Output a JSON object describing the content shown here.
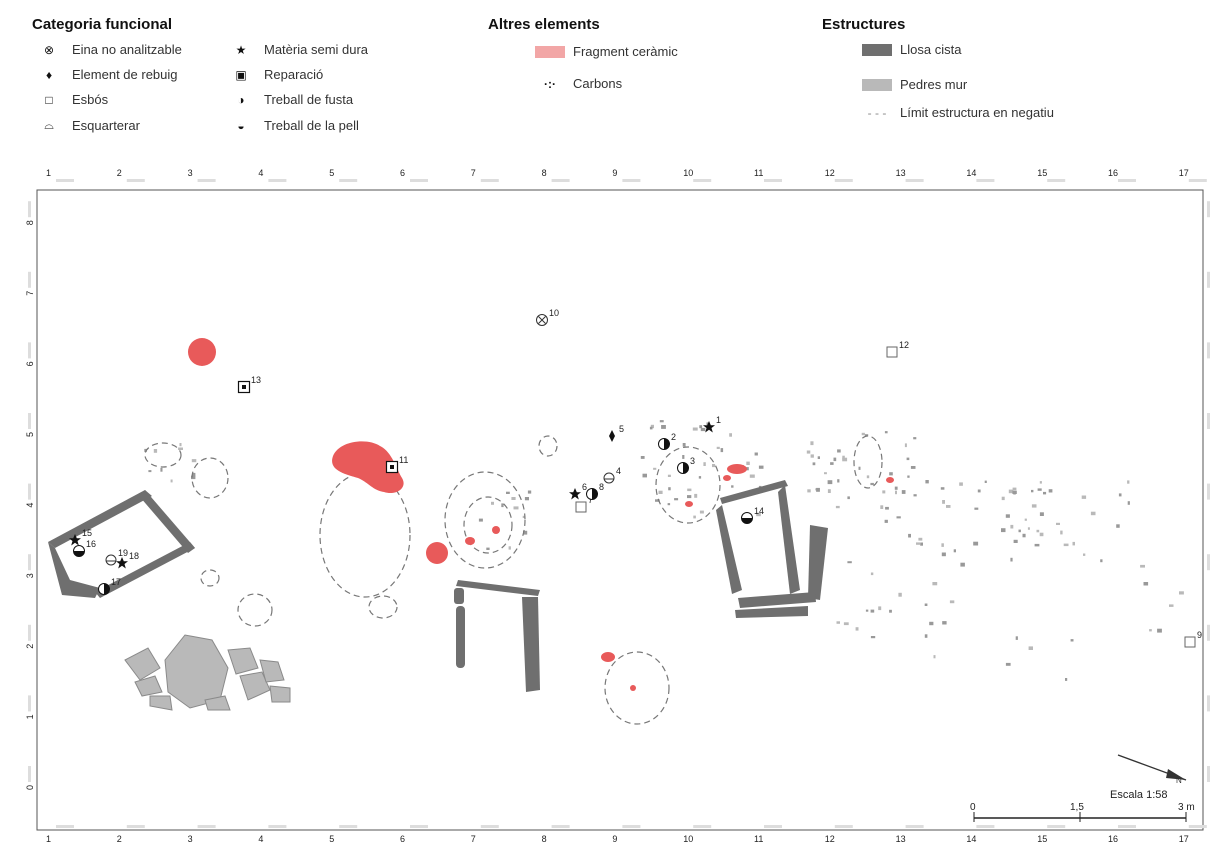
{
  "legend": {
    "functional": {
      "title": "Categoria funcional",
      "items": [
        {
          "label": "Eina no analitzable",
          "icon": "circle-x-icon",
          "glyph": "⊗"
        },
        {
          "label": "Element de rebuig",
          "icon": "diamond-icon",
          "glyph": "♦"
        },
        {
          "label": "Esbós",
          "icon": "square-outline-icon",
          "glyph": "□"
        },
        {
          "label": "Esquarterar",
          "icon": "half-circle-icon",
          "glyph": "⌓"
        },
        {
          "label": "Matèria semi dura",
          "icon": "star-icon",
          "glyph": "★"
        },
        {
          "label": "Reparació",
          "icon": "boxed-square-icon",
          "glyph": "▣"
        },
        {
          "label": "Treball de fusta",
          "icon": "half-left-circle-icon",
          "glyph": "◑"
        },
        {
          "label": "Treball de la pell",
          "icon": "half-bottom-circle-icon",
          "glyph": "◒"
        }
      ]
    },
    "other": {
      "title": "Altres elements",
      "items": [
        {
          "label": "Fragment ceràmic",
          "color": "#f2a6a6"
        },
        {
          "label": "Carbons",
          "glyph": "·:·"
        }
      ]
    },
    "structures": {
      "title": "Estructures",
      "items": [
        {
          "label": "Llosa cista",
          "color": "#6f6f6f"
        },
        {
          "label": "Pedres mur",
          "color": "#b9b9b9"
        },
        {
          "label": "Límit estructura en negatiu",
          "glyph": "- - -"
        }
      ]
    }
  },
  "axes": {
    "x_ticks": [
      "1",
      "2",
      "3",
      "4",
      "5",
      "6",
      "7",
      "8",
      "9",
      "10",
      "11",
      "12",
      "13",
      "14",
      "15",
      "16",
      "17"
    ],
    "y_ticks": [
      "0",
      "1",
      "2",
      "3",
      "4",
      "5",
      "6",
      "7",
      "8"
    ]
  },
  "finds": [
    {
      "id": "1",
      "type": "star-icon"
    },
    {
      "id": "2",
      "type": "half-left-circle-icon"
    },
    {
      "id": "3",
      "type": "half-left-circle-icon"
    },
    {
      "id": "4",
      "type": "half-circle-icon"
    },
    {
      "id": "5",
      "type": "diamond-icon"
    },
    {
      "id": "6",
      "type": "star-icon"
    },
    {
      "id": "7",
      "type": "square-outline-icon"
    },
    {
      "id": "8",
      "type": "half-left-circle-icon"
    },
    {
      "id": "9",
      "type": "square-outline-icon"
    },
    {
      "id": "10",
      "type": "circle-x-icon"
    },
    {
      "id": "11",
      "type": "boxed-square-icon"
    },
    {
      "id": "12",
      "type": "square-outline-icon"
    },
    {
      "id": "13",
      "type": "boxed-square-icon"
    },
    {
      "id": "14",
      "type": "half-bottom-circle-icon"
    },
    {
      "id": "15",
      "type": "star-icon"
    },
    {
      "id": "16",
      "type": "half-bottom-circle-icon"
    },
    {
      "id": "17",
      "type": "half-left-circle-icon"
    },
    {
      "id": "18",
      "type": "star-icon"
    },
    {
      "id": "19",
      "type": "half-circle-icon"
    }
  ],
  "north_label": "N",
  "scale": {
    "label": "Escala 1:58",
    "ticks": [
      "0",
      "1,5",
      "3 m"
    ]
  },
  "colors": {
    "ceramic": "#e85a5a",
    "slab": "#6f6f6f",
    "wall": "#b9b9b9",
    "frame": "#444444"
  }
}
